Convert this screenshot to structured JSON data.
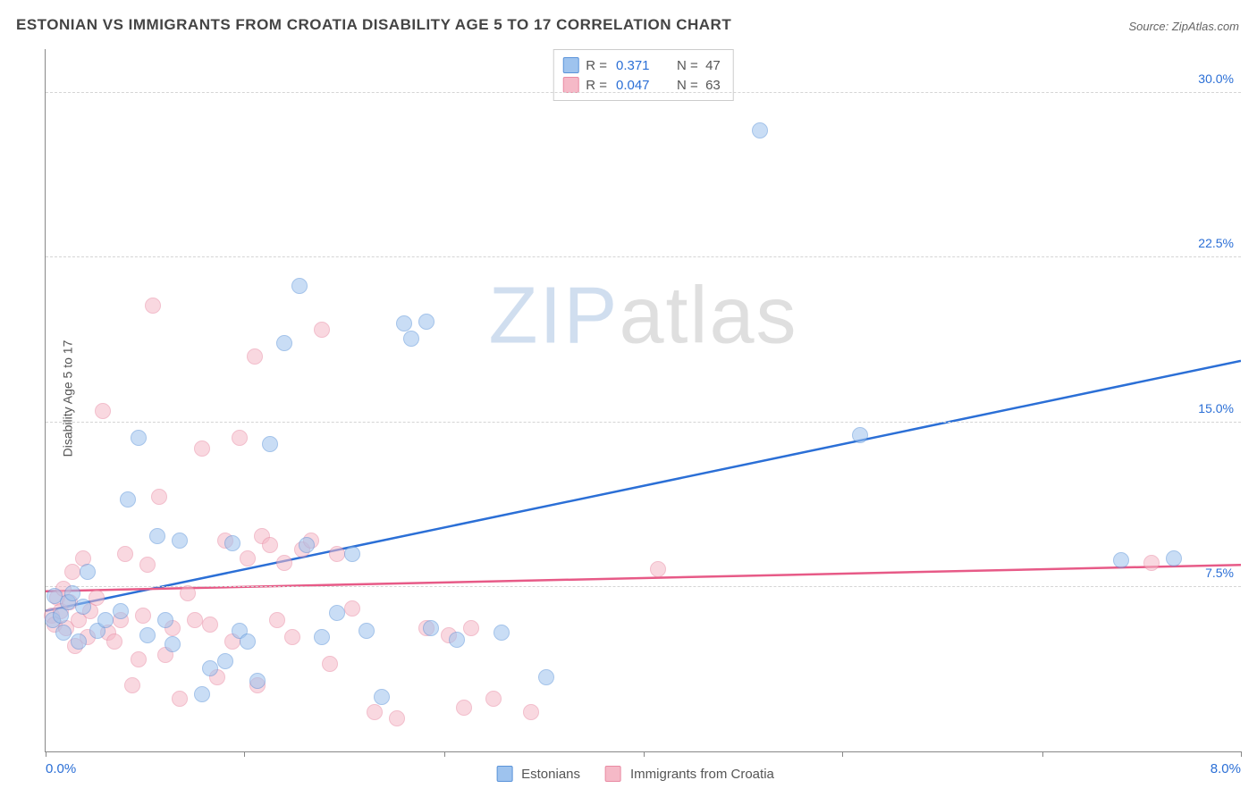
{
  "title": "ESTONIAN VS IMMIGRANTS FROM CROATIA DISABILITY AGE 5 TO 17 CORRELATION CHART",
  "source": "Source: ZipAtlas.com",
  "ylabel": "Disability Age 5 to 17",
  "watermark": {
    "part1": "ZIP",
    "part2": "atlas"
  },
  "chart": {
    "type": "scatter",
    "background_color": "#ffffff",
    "grid_color": "#d5d5d5",
    "axis_color": "#888888",
    "xlim": [
      0,
      8
    ],
    "ylim": [
      0,
      32
    ],
    "xaxis": {
      "label_left": "0.0%",
      "label_right": "8.0%",
      "label_color": "#2b6fd6",
      "tick_positions": [
        0,
        1.33,
        2.67,
        4.0,
        5.33,
        6.67,
        8.0
      ]
    },
    "yaxis": {
      "ticks": [
        {
          "v": 7.5,
          "label": "7.5%"
        },
        {
          "v": 15.0,
          "label": "15.0%"
        },
        {
          "v": 22.5,
          "label": "22.5%"
        },
        {
          "v": 30.0,
          "label": "30.0%"
        }
      ],
      "tick_color": "#2b6fd6",
      "tick_fontsize": 14
    },
    "marker_radius": 9,
    "marker_opacity": 0.55,
    "line_width": 2.5,
    "series": [
      {
        "id": "estonians",
        "name": "Estonians",
        "fill": "#9ec3ee",
        "stroke": "#5a93d9",
        "line_color": "#2b6fd6",
        "R": "0.371",
        "N": "47",
        "trend": {
          "x1": 0,
          "y1": 6.4,
          "x2": 8,
          "y2": 17.8
        },
        "points": [
          [
            0.05,
            6.0
          ],
          [
            0.06,
            7.1
          ],
          [
            0.1,
            6.2
          ],
          [
            0.12,
            5.4
          ],
          [
            0.15,
            6.8
          ],
          [
            0.18,
            7.2
          ],
          [
            0.22,
            5.0
          ],
          [
            0.25,
            6.6
          ],
          [
            0.28,
            8.2
          ],
          [
            0.35,
            5.5
          ],
          [
            0.4,
            6.0
          ],
          [
            0.5,
            6.4
          ],
          [
            0.55,
            11.5
          ],
          [
            0.62,
            14.3
          ],
          [
            0.68,
            5.3
          ],
          [
            0.75,
            9.8
          ],
          [
            0.8,
            6.0
          ],
          [
            0.85,
            4.9
          ],
          [
            0.9,
            9.6
          ],
          [
            1.05,
            2.6
          ],
          [
            1.1,
            3.8
          ],
          [
            1.2,
            4.1
          ],
          [
            1.25,
            9.5
          ],
          [
            1.3,
            5.5
          ],
          [
            1.35,
            5.0
          ],
          [
            1.42,
            3.2
          ],
          [
            1.5,
            14.0
          ],
          [
            1.6,
            18.6
          ],
          [
            1.7,
            21.2
          ],
          [
            1.75,
            9.4
          ],
          [
            1.85,
            5.2
          ],
          [
            1.95,
            6.3
          ],
          [
            2.05,
            9.0
          ],
          [
            2.15,
            5.5
          ],
          [
            2.25,
            2.5
          ],
          [
            2.4,
            19.5
          ],
          [
            2.45,
            18.8
          ],
          [
            2.55,
            19.6
          ],
          [
            2.58,
            5.6
          ],
          [
            2.75,
            5.1
          ],
          [
            3.05,
            5.4
          ],
          [
            3.35,
            3.4
          ],
          [
            4.78,
            28.3
          ],
          [
            5.45,
            14.4
          ],
          [
            7.2,
            8.7
          ],
          [
            7.55,
            8.8
          ]
        ]
      },
      {
        "id": "croatia",
        "name": "Immigrants from Croatia",
        "fill": "#f5b9c7",
        "stroke": "#e98aa3",
        "line_color": "#e75a87",
        "R": "0.047",
        "N": "63",
        "trend": {
          "x1": 0,
          "y1": 7.3,
          "x2": 8,
          "y2": 8.5
        },
        "points": [
          [
            0.04,
            6.2
          ],
          [
            0.06,
            5.8
          ],
          [
            0.08,
            7.0
          ],
          [
            0.1,
            6.4
          ],
          [
            0.12,
            7.4
          ],
          [
            0.14,
            5.6
          ],
          [
            0.16,
            6.8
          ],
          [
            0.18,
            8.2
          ],
          [
            0.2,
            4.8
          ],
          [
            0.22,
            6.0
          ],
          [
            0.25,
            8.8
          ],
          [
            0.28,
            5.2
          ],
          [
            0.3,
            6.4
          ],
          [
            0.34,
            7.0
          ],
          [
            0.38,
            15.5
          ],
          [
            0.42,
            5.4
          ],
          [
            0.46,
            5.0
          ],
          [
            0.5,
            6.0
          ],
          [
            0.53,
            9.0
          ],
          [
            0.58,
            3.0
          ],
          [
            0.62,
            4.2
          ],
          [
            0.65,
            6.2
          ],
          [
            0.68,
            8.5
          ],
          [
            0.72,
            20.3
          ],
          [
            0.76,
            11.6
          ],
          [
            0.8,
            4.4
          ],
          [
            0.85,
            5.6
          ],
          [
            0.9,
            2.4
          ],
          [
            0.95,
            7.2
          ],
          [
            1.0,
            6.0
          ],
          [
            1.05,
            13.8
          ],
          [
            1.1,
            5.8
          ],
          [
            1.15,
            3.4
          ],
          [
            1.2,
            9.6
          ],
          [
            1.25,
            5.0
          ],
          [
            1.3,
            14.3
          ],
          [
            1.35,
            8.8
          ],
          [
            1.4,
            18.0
          ],
          [
            1.42,
            3.0
          ],
          [
            1.45,
            9.8
          ],
          [
            1.5,
            9.4
          ],
          [
            1.55,
            6.0
          ],
          [
            1.6,
            8.6
          ],
          [
            1.65,
            5.2
          ],
          [
            1.72,
            9.2
          ],
          [
            1.78,
            9.6
          ],
          [
            1.85,
            19.2
          ],
          [
            1.9,
            4.0
          ],
          [
            1.95,
            9.0
          ],
          [
            2.05,
            6.5
          ],
          [
            2.2,
            1.8
          ],
          [
            2.35,
            1.5
          ],
          [
            2.55,
            5.6
          ],
          [
            2.7,
            5.3
          ],
          [
            2.8,
            2.0
          ],
          [
            2.85,
            5.6
          ],
          [
            3.0,
            2.4
          ],
          [
            3.25,
            1.8
          ],
          [
            4.1,
            8.3
          ],
          [
            7.4,
            8.6
          ]
        ]
      }
    ]
  },
  "legend_bottom": {
    "items": [
      {
        "label": "Estonians",
        "swatch_fill": "#9ec3ee",
        "swatch_stroke": "#5a93d9"
      },
      {
        "label": "Immigrants from Croatia",
        "swatch_fill": "#f5b9c7",
        "swatch_stroke": "#e98aa3"
      }
    ]
  },
  "stats_box": {
    "r_label": "R  =",
    "n_label": "N  ="
  }
}
